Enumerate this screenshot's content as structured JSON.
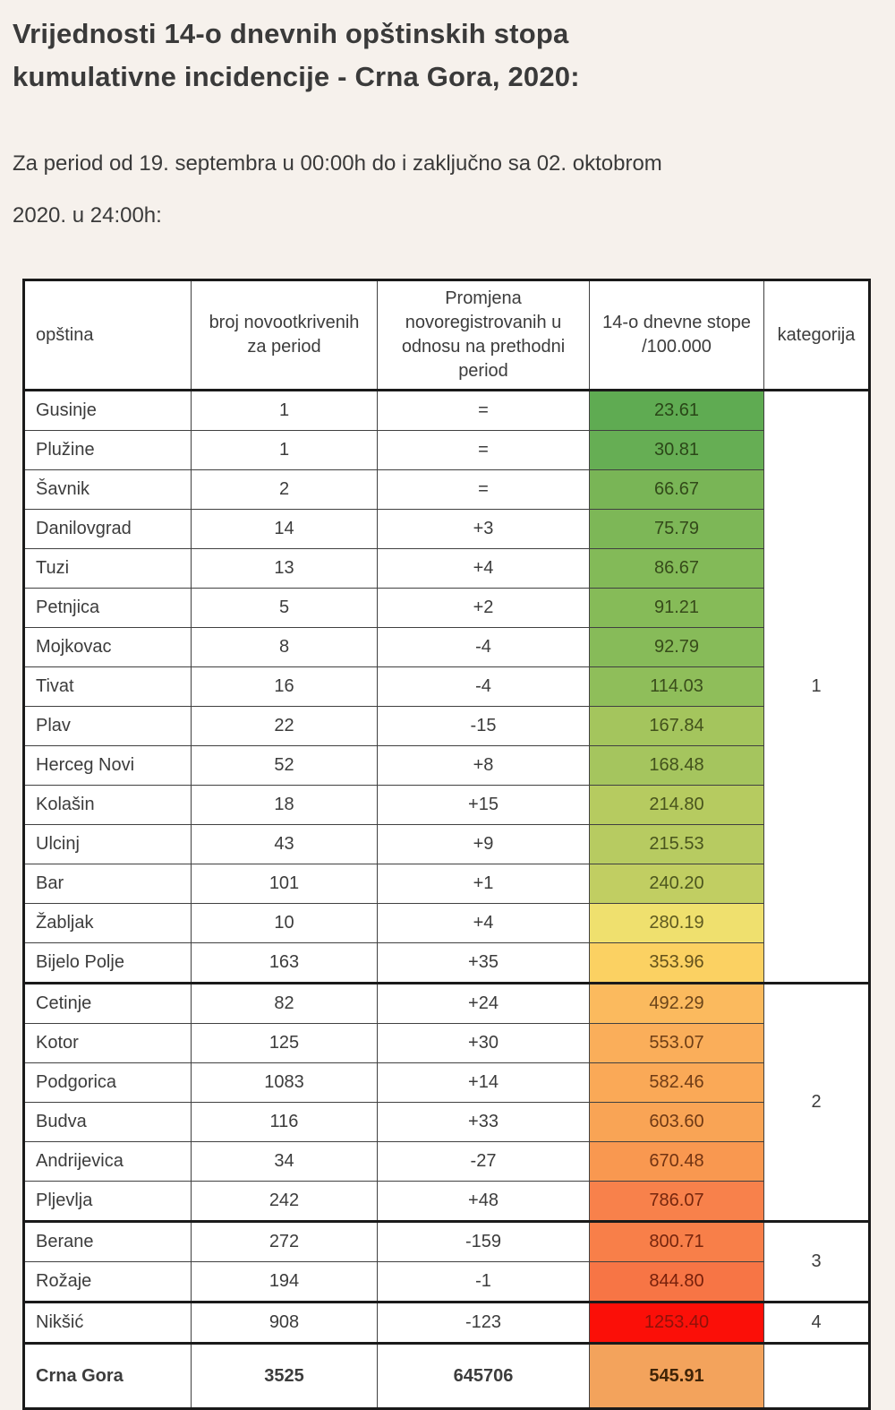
{
  "page": {
    "background": "#F6F1EC",
    "title_line1": "Vrijednosti 14-o dnevnih opštinskih stopa",
    "title_line2": "kumulativne incidencije - Crna Gora, 2020:",
    "subtitle_line1": "Za period od 19. septembra u 00:00h do i zaključno sa 02. oktobrom",
    "subtitle_line2": "2020. u 24:00h:"
  },
  "chart_data": {
    "type": "table",
    "title": "Vrijednosti 14-o dnevnih opštinskih stopa kumulativne incidencije - Crna Gora, 2020",
    "subtitle": "Za period od 19. septembra u 00:00h do i zaključno sa 02. oktobrom 2020. u 24:00h",
    "columns": [
      "opština",
      "broj novootkrivenih za period",
      "Promjena novoregistrovanih u odnosu na prethodni period",
      "14-o dnevne stope /100.000",
      "kategorija"
    ],
    "rows": [
      {
        "name": "Gusinje",
        "count": "1",
        "change": "=",
        "rate": "23.61",
        "rate_bg": "#5FAB52",
        "rate_fg": "#294617",
        "cat_label": "1",
        "cat_span": 15,
        "group_end": false,
        "bold": false
      },
      {
        "name": "Plužine",
        "count": "1",
        "change": "=",
        "rate": "30.81",
        "rate_bg": "#66AE54",
        "rate_fg": "#2B4718",
        "group_end": false,
        "bold": false
      },
      {
        "name": "Šavnik",
        "count": "2",
        "change": "=",
        "rate": "66.67",
        "rate_bg": "#79B556",
        "rate_fg": "#324A19",
        "group_end": false,
        "bold": false
      },
      {
        "name": "Danilovgrad",
        "count": "14",
        "change": "+3",
        "rate": "75.79",
        "rate_bg": "#7DB757",
        "rate_fg": "#33491A",
        "group_end": false,
        "bold": false
      },
      {
        "name": "Tuzi",
        "count": "13",
        "change": "+4",
        "rate": "86.67",
        "rate_bg": "#83BA58",
        "rate_fg": "#364B1A",
        "group_end": false,
        "bold": false
      },
      {
        "name": "Petnjica",
        "count": "5",
        "change": "+2",
        "rate": "91.21",
        "rate_bg": "#86BB58",
        "rate_fg": "#374B1A",
        "group_end": false,
        "bold": false
      },
      {
        "name": "Mojkovac",
        "count": "8",
        "change": "-4",
        "rate": "92.79",
        "rate_bg": "#87BB59",
        "rate_fg": "#374B1A",
        "group_end": false,
        "bold": false
      },
      {
        "name": "Tivat",
        "count": "16",
        "change": "-4",
        "rate": "114.03",
        "rate_bg": "#8FBE5A",
        "rate_fg": "#3A4D1B",
        "group_end": false,
        "bold": false
      },
      {
        "name": "Plav",
        "count": "22",
        "change": "-15",
        "rate": "167.84",
        "rate_bg": "#A4C55D",
        "rate_fg": "#42511C",
        "group_end": false,
        "bold": false
      },
      {
        "name": "Herceg Novi",
        "count": "52",
        "change": "+8",
        "rate": "168.48",
        "rate_bg": "#A5C55E",
        "rate_fg": "#42511C",
        "group_end": false,
        "bold": false
      },
      {
        "name": "Kolašin",
        "count": "18",
        "change": "+15",
        "rate": "214.80",
        "rate_bg": "#B6CB60",
        "rate_fg": "#49541D",
        "group_end": false,
        "bold": false
      },
      {
        "name": "Ulcinj",
        "count": "43",
        "change": "+9",
        "rate": "215.53",
        "rate_bg": "#B7CB61",
        "rate_fg": "#49541D",
        "group_end": false,
        "bold": false
      },
      {
        "name": "Bar",
        "count": "101",
        "change": "+1",
        "rate": "240.20",
        "rate_bg": "#C1CE62",
        "rate_fg": "#4D561E",
        "group_end": false,
        "bold": false
      },
      {
        "name": "Žabljak",
        "count": "10",
        "change": "+4",
        "rate": "280.19",
        "rate_bg": "#EFE06E",
        "rate_fg": "#5F5A20",
        "group_end": false,
        "bold": false
      },
      {
        "name": "Bijelo Polje",
        "count": "163",
        "change": "+35",
        "rate": "353.96",
        "rate_bg": "#FBD162",
        "rate_fg": "#64511B",
        "group_end": true,
        "bold": false
      },
      {
        "name": "Cetinje",
        "count": "82",
        "change": "+24",
        "rate": "492.29",
        "rate_bg": "#FBBA5E",
        "rate_fg": "#6B4419",
        "cat_label": "2",
        "cat_span": 6,
        "group_end": false,
        "bold": false
      },
      {
        "name": "Kotor",
        "count": "125",
        "change": "+30",
        "rate": "553.07",
        "rate_bg": "#FAAE5A",
        "rate_fg": "#6E3E16",
        "group_end": false,
        "bold": false
      },
      {
        "name": "Podgorica",
        "count": "1083",
        "change": "+14",
        "rate": "582.46",
        "rate_bg": "#FAA957",
        "rate_fg": "#6F3B15",
        "group_end": false,
        "bold": false
      },
      {
        "name": "Budva",
        "count": "116",
        "change": "+33",
        "rate": "603.60",
        "rate_bg": "#F9A455",
        "rate_fg": "#703914",
        "group_end": false,
        "bold": false
      },
      {
        "name": "Andrijevica",
        "count": "34",
        "change": "-27",
        "rate": "670.48",
        "rate_bg": "#F99850",
        "rate_fg": "#723312",
        "group_end": false,
        "bold": false
      },
      {
        "name": "Pljevlja",
        "count": "242",
        "change": "+48",
        "rate": "786.07",
        "rate_bg": "#F8814B",
        "rate_fg": "#76260D",
        "group_end": true,
        "bold": false
      },
      {
        "name": "Berane",
        "count": "272",
        "change": "-159",
        "rate": "800.71",
        "rate_bg": "#F87F49",
        "rate_fg": "#76250D",
        "cat_label": "3",
        "cat_span": 2,
        "group_end": false,
        "bold": false
      },
      {
        "name": "Rožaje",
        "count": "194",
        "change": "-1",
        "rate": "844.80",
        "rate_bg": "#F77545",
        "rate_fg": "#77200B",
        "group_end": true,
        "bold": false
      },
      {
        "name": "Nikšić",
        "count": "908",
        "change": "-123",
        "rate": "1253.40",
        "rate_bg": "#FB0F08",
        "rate_fg": "#8E1109",
        "cat_label": "4",
        "cat_span": 1,
        "group_end": true,
        "bold": false
      },
      {
        "name": "Crna Gora",
        "count": "3525",
        "change": "645706",
        "rate": "545.91",
        "rate_bg": "#F3A35C",
        "rate_fg": "#402407",
        "cat_label": "",
        "cat_span": 1,
        "group_end": false,
        "bold": true
      }
    ]
  }
}
